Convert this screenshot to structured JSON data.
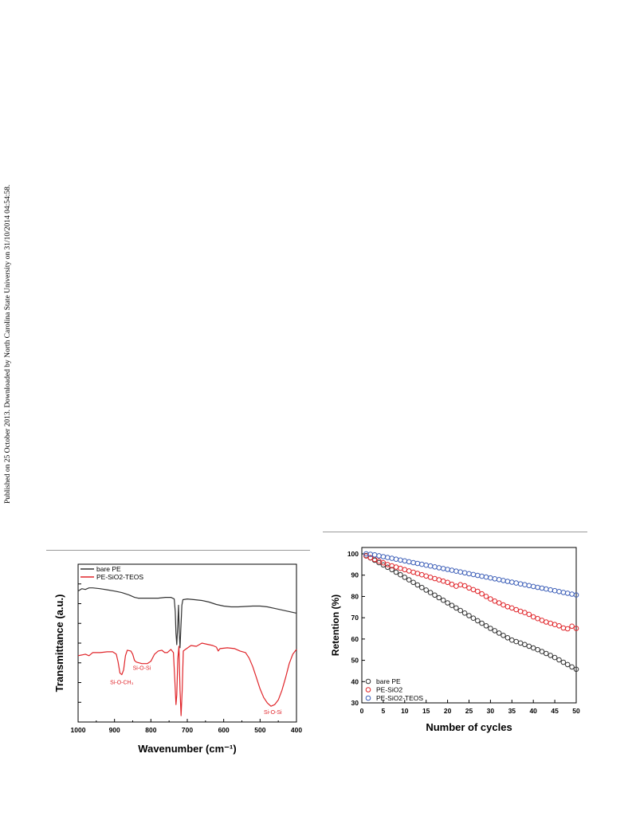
{
  "side_note": "Published on 25 October 2013. Downloaded by North Carolina State University on 31/10/2014 04:54:58.",
  "colors": {
    "black": "#333333",
    "red": "#e0252a",
    "blue": "#3d5fb8",
    "rule": "#9a9a9a"
  },
  "chart_data": [
    {
      "type": "line",
      "title": "",
      "xlabel": "Wavenumber (cm⁻¹)",
      "ylabel": "Transmittance (a.u.)",
      "xlim": [
        1000,
        400
      ],
      "x_reversed": true,
      "x_ticks": [
        1000,
        900,
        800,
        700,
        600,
        500,
        400
      ],
      "y_tick_labels": false,
      "legend": "top-left",
      "grid": false,
      "series": [
        {
          "name": "bare PE",
          "color": "#333333",
          "points": [
            [
              1000,
              0.83
            ],
            [
              990,
              0.845
            ],
            [
              980,
              0.84
            ],
            [
              970,
              0.85
            ],
            [
              960,
              0.85
            ],
            [
              940,
              0.845
            ],
            [
              920,
              0.838
            ],
            [
              900,
              0.83
            ],
            [
              880,
              0.82
            ],
            [
              860,
              0.805
            ],
            [
              845,
              0.79
            ],
            [
              835,
              0.785
            ],
            [
              800,
              0.785
            ],
            [
              780,
              0.785
            ],
            [
              760,
              0.79
            ],
            [
              745,
              0.79
            ],
            [
              736,
              0.78
            ],
            [
              733,
              0.7
            ],
            [
              731,
              0.56
            ],
            [
              729,
              0.49
            ],
            [
              726,
              0.62
            ],
            [
              724,
              0.74
            ],
            [
              722,
              0.56
            ],
            [
              720,
              0.47
            ],
            [
              718,
              0.58
            ],
            [
              715,
              0.74
            ],
            [
              712,
              0.775
            ],
            [
              700,
              0.78
            ],
            [
              680,
              0.775
            ],
            [
              660,
              0.77
            ],
            [
              640,
              0.76
            ],
            [
              620,
              0.745
            ],
            [
              600,
              0.735
            ],
            [
              580,
              0.73
            ],
            [
              560,
              0.73
            ],
            [
              520,
              0.735
            ],
            [
              500,
              0.735
            ],
            [
              480,
              0.73
            ],
            [
              460,
              0.72
            ],
            [
              440,
              0.71
            ],
            [
              420,
              0.7
            ],
            [
              400,
              0.69
            ]
          ]
        },
        {
          "name": "PE-SiO2-TEOS",
          "color": "#e0252a",
          "points": [
            [
              1000,
              0.42
            ],
            [
              990,
              0.425
            ],
            [
              980,
              0.43
            ],
            [
              970,
              0.42
            ],
            [
              960,
              0.44
            ],
            [
              940,
              0.44
            ],
            [
              920,
              0.445
            ],
            [
              905,
              0.445
            ],
            [
              895,
              0.43
            ],
            [
              890,
              0.38
            ],
            [
              885,
              0.31
            ],
            [
              880,
              0.3
            ],
            [
              875,
              0.33
            ],
            [
              870,
              0.42
            ],
            [
              865,
              0.455
            ],
            [
              855,
              0.45
            ],
            [
              850,
              0.43
            ],
            [
              845,
              0.39
            ],
            [
              840,
              0.38
            ],
            [
              825,
              0.37
            ],
            [
              810,
              0.37
            ],
            [
              800,
              0.385
            ],
            [
              790,
              0.43
            ],
            [
              780,
              0.45
            ],
            [
              770,
              0.455
            ],
            [
              762,
              0.44
            ],
            [
              755,
              0.44
            ],
            [
              745,
              0.46
            ],
            [
              738,
              0.44
            ],
            [
              734,
              0.25
            ],
            [
              731,
              0.11
            ],
            [
              729,
              0.17
            ],
            [
              726,
              0.4
            ],
            [
              723,
              0.48
            ],
            [
              720,
              0.2
            ],
            [
              717,
              0.04
            ],
            [
              714,
              0.2
            ],
            [
              711,
              0.45
            ],
            [
              705,
              0.46
            ],
            [
              690,
              0.485
            ],
            [
              675,
              0.48
            ],
            [
              660,
              0.5
            ],
            [
              650,
              0.495
            ],
            [
              630,
              0.485
            ],
            [
              620,
              0.475
            ],
            [
              615,
              0.45
            ],
            [
              610,
              0.465
            ],
            [
              590,
              0.47
            ],
            [
              570,
              0.465
            ],
            [
              555,
              0.45
            ],
            [
              540,
              0.44
            ],
            [
              530,
              0.405
            ],
            [
              520,
              0.35
            ],
            [
              510,
              0.28
            ],
            [
              500,
              0.21
            ],
            [
              490,
              0.155
            ],
            [
              480,
              0.12
            ],
            [
              470,
              0.1
            ],
            [
              460,
              0.11
            ],
            [
              450,
              0.14
            ],
            [
              440,
              0.2
            ],
            [
              430,
              0.28
            ],
            [
              420,
              0.37
            ],
            [
              410,
              0.43
            ],
            [
              400,
              0.46
            ]
          ]
        }
      ],
      "annotations": [
        {
          "text": "Si-O-CH₃",
          "x": 880,
          "y": 0.24
        },
        {
          "text": "Si-O-Si",
          "x": 825,
          "y": 0.33
        },
        {
          "text": "Si-O-Si",
          "x": 465,
          "y": 0.05
        }
      ]
    },
    {
      "type": "scatter",
      "title": "",
      "xlabel": "Number of cycles",
      "ylabel": "Retention (%)",
      "xlim": [
        0,
        50
      ],
      "ylim": [
        30,
        103
      ],
      "x_ticks": [
        0,
        5,
        10,
        15,
        20,
        25,
        30,
        35,
        40,
        45,
        50
      ],
      "y_ticks": [
        30,
        40,
        50,
        60,
        70,
        80,
        90,
        100
      ],
      "legend": "bottom-left",
      "grid": false,
      "x": [
        1,
        2,
        3,
        4,
        5,
        6,
        7,
        8,
        9,
        10,
        11,
        12,
        13,
        14,
        15,
        16,
        17,
        18,
        19,
        20,
        21,
        22,
        23,
        24,
        25,
        26,
        27,
        28,
        29,
        30,
        31,
        32,
        33,
        34,
        35,
        36,
        37,
        38,
        39,
        40,
        41,
        42,
        43,
        44,
        45,
        46,
        47,
        48,
        49,
        50
      ],
      "series": [
        {
          "name": "bare PE",
          "color": "#333333",
          "values": [
            99.2,
            98.1,
            97.0,
            95.9,
            94.8,
            93.7,
            92.6,
            91.4,
            90.2,
            89.0,
            87.8,
            86.6,
            85.4,
            84.2,
            83.0,
            81.8,
            80.6,
            79.4,
            78.2,
            77.0,
            75.8,
            74.6,
            73.4,
            72.2,
            71.0,
            69.8,
            68.6,
            67.4,
            66.2,
            65.0,
            63.9,
            62.8,
            61.7,
            60.6,
            59.5,
            58.8,
            58.1,
            57.4,
            56.6,
            55.8,
            55.0,
            54.1,
            53.2,
            52.3,
            51.3,
            50.2,
            49.1,
            48.0,
            46.9,
            45.8
          ]
        },
        {
          "name": "PE-SiO2",
          "color": "#e0252a",
          "values": [
            99.0,
            98.2,
            97.4,
            96.6,
            95.8,
            95.0,
            94.4,
            93.8,
            93.2,
            92.6,
            92.0,
            91.4,
            90.8,
            90.2,
            89.6,
            89.0,
            88.4,
            87.8,
            87.2,
            86.6,
            85.7,
            84.8,
            85.5,
            85.0,
            84.0,
            83.2,
            82.4,
            81.2,
            80.0,
            78.8,
            77.8,
            77.0,
            76.0,
            75.2,
            74.6,
            73.8,
            73.0,
            72.4,
            71.6,
            70.4,
            69.6,
            68.8,
            68.0,
            67.4,
            66.8,
            66.2,
            65.2,
            64.8,
            66.0,
            65.0
          ]
        },
        {
          "name": "PE-SiO2-TEOS",
          "color": "#3d5fb8",
          "values": [
            100.0,
            99.8,
            99.5,
            99.1,
            98.7,
            98.3,
            97.9,
            97.5,
            97.1,
            96.7,
            96.3,
            95.9,
            95.5,
            95.1,
            94.7,
            94.3,
            93.9,
            93.5,
            93.1,
            92.7,
            92.3,
            91.9,
            91.5,
            91.1,
            90.7,
            90.3,
            89.9,
            89.5,
            89.1,
            88.7,
            88.3,
            87.9,
            87.5,
            87.1,
            86.7,
            86.3,
            85.9,
            85.5,
            85.1,
            84.7,
            84.3,
            83.9,
            83.5,
            83.1,
            82.7,
            82.3,
            81.9,
            81.5,
            81.1,
            80.7
          ]
        }
      ]
    }
  ]
}
